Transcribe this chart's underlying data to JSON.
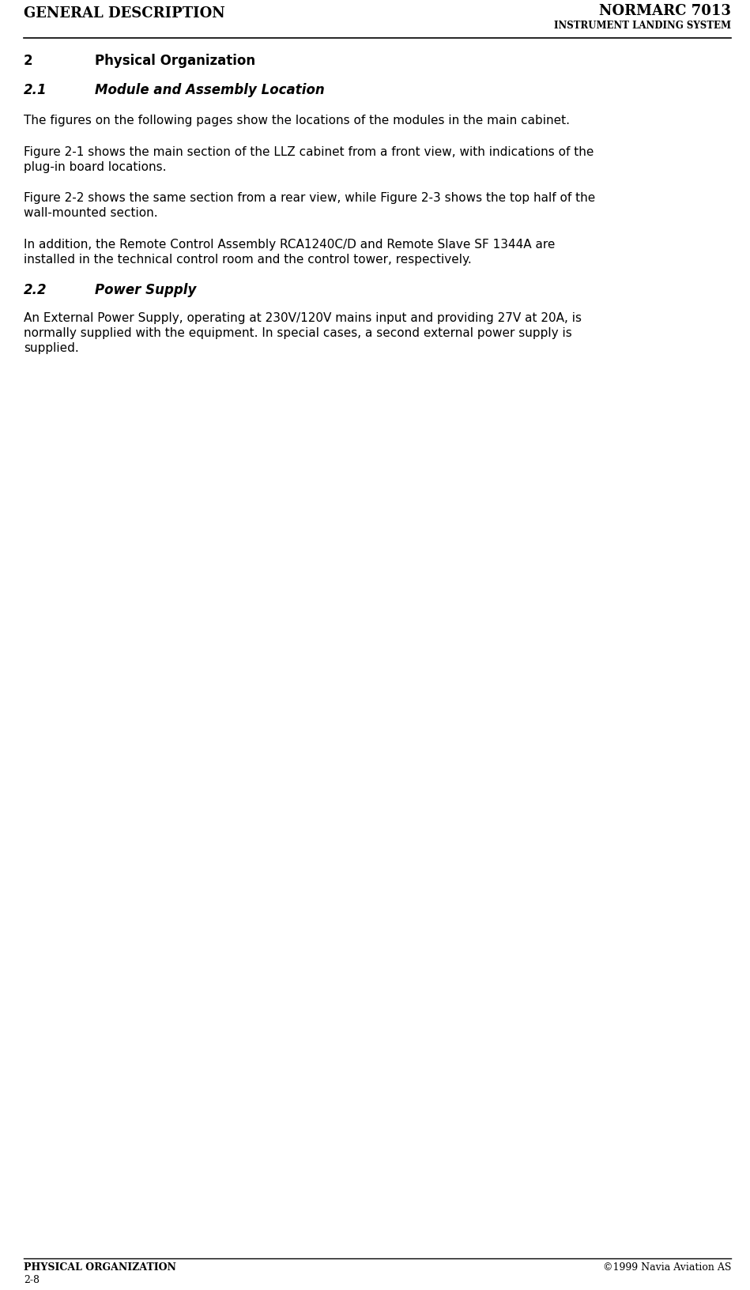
{
  "bg_color": "#ffffff",
  "header_left": "GENERAL DESCRIPTION",
  "header_right_top": "NORMARC 7013",
  "header_right_bottom": "INSTRUMENT LANDING SYSTEM",
  "footer_left_top": "PHYSICAL ORGANIZATION",
  "footer_right_top": "©1999 Navia Aviation AS",
  "footer_left_bottom": "2-8",
  "section2_num": "2",
  "section2_title": "Physical Organization",
  "section21_num": "2.1",
  "section21_title": "Module and Assembly Location",
  "para1": "The figures on the following pages show the locations of the modules in the main cabinet.",
  "para2_line1": "Figure 2-1 shows the main section of the LLZ cabinet from a front view, with indications of the",
  "para2_line2": "plug-in board locations.",
  "para3_line1": "Figure 2-2 shows the same section from a rear view, while Figure 2-3 shows the top half of the",
  "para3_line2": "wall-mounted section.",
  "para4_line1": "In addition, the Remote Control Assembly RCA1240C/D and Remote Slave SF 1344A are",
  "para4_line2": "installed in the technical control room and the control tower, respectively.",
  "section22_num": "2.2",
  "section22_title": "Power Supply",
  "para5_line1": "An External Power Supply, operating at 230V/120V mains input and providing 27V at 20A, is",
  "para5_line2": "normally supplied with the equipment. In special cases, a second external power supply is",
  "para5_line3": "supplied.",
  "header_fontsize": 13,
  "header_subtitle_fontsize": 8.5,
  "section_fontsize": 12,
  "body_fontsize": 11,
  "footer_fontsize": 9
}
